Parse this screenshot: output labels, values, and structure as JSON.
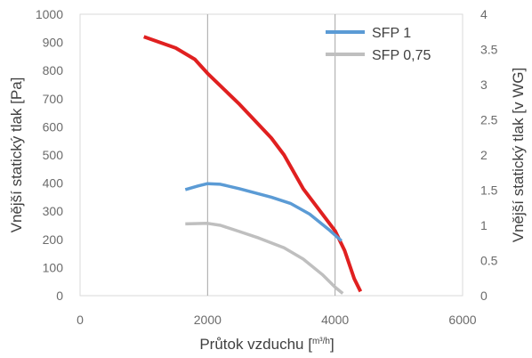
{
  "chart_data": {
    "type": "line",
    "xlabel": "Průtok vzduchu [m³/h]",
    "xlabel_main": "Průtok vzduchu [",
    "xlabel_unit": "m³/h",
    "xlabel_close": "]",
    "ylabel": "Vnější statický tlak [Pa]",
    "y2label": "Vnější statický tlak [v WG]",
    "xlim": [
      0,
      6000
    ],
    "ylim": [
      0,
      1000
    ],
    "y2lim": [
      0,
      4
    ],
    "x_ticks": [
      "0",
      "2000",
      "4000",
      "6000"
    ],
    "y_ticks": [
      "0",
      "100",
      "200",
      "300",
      "400",
      "500",
      "600",
      "700",
      "800",
      "900",
      "1000"
    ],
    "y2_ticks": [
      "0",
      "0.5",
      "1",
      "1.5",
      "2",
      "2.5",
      "3",
      "3.5",
      "4"
    ],
    "grid": "vertical",
    "legend_position": "top-right",
    "series": [
      {
        "color": "#e02020",
        "points": [
          [
            1000,
            920
          ],
          [
            1500,
            880
          ],
          [
            1800,
            840
          ],
          [
            2000,
            790
          ],
          [
            2500,
            680
          ],
          [
            3000,
            560
          ],
          [
            3200,
            500
          ],
          [
            3500,
            380
          ],
          [
            4000,
            230
          ],
          [
            4150,
            160
          ],
          [
            4300,
            60
          ],
          [
            4400,
            15
          ]
        ]
      },
      {
        "name": "SFP 1",
        "color": "#5b9bd5",
        "points": [
          [
            1650,
            377
          ],
          [
            1850,
            390
          ],
          [
            2000,
            398
          ],
          [
            2200,
            396
          ],
          [
            2500,
            380
          ],
          [
            3000,
            350
          ],
          [
            3300,
            328
          ],
          [
            3600,
            290
          ],
          [
            3900,
            235
          ],
          [
            4100,
            195
          ]
        ]
      },
      {
        "name": "SFP 0,75",
        "color": "#bfbfbf",
        "points": [
          [
            1650,
            255
          ],
          [
            2000,
            257
          ],
          [
            2200,
            250
          ],
          [
            2500,
            228
          ],
          [
            2800,
            205
          ],
          [
            3200,
            170
          ],
          [
            3500,
            130
          ],
          [
            3800,
            75
          ],
          [
            4000,
            30
          ],
          [
            4120,
            8
          ]
        ]
      }
    ]
  }
}
